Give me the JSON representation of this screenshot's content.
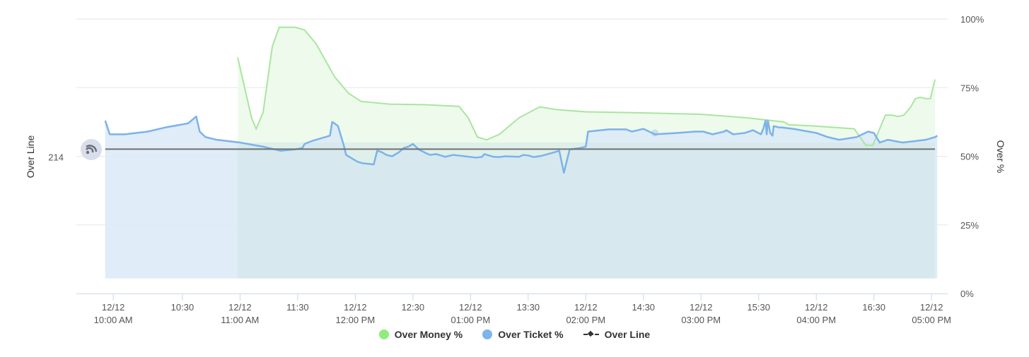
{
  "colors": {
    "money_line": "#a8e6a0",
    "money_fill": "#eefaeb",
    "ticket_line": "#7cb2ea",
    "ticket_fill": "#dbe9f7",
    "overlap_fill": "#d2e8e8",
    "overline": "#707070",
    "grid": "#e6e6e6",
    "legend_money": "#90ed7d",
    "legend_ticket": "#7cb5ec"
  },
  "chart_data": {
    "type": "area",
    "title": "",
    "ylabel_left": "Over Line",
    "ylabel_right": "Over %",
    "yticks_left": [
      "214"
    ],
    "yticks_right": [
      "100%",
      "75%",
      "50%",
      "25%",
      "0%"
    ],
    "ylim_right": [
      0,
      100
    ],
    "x_ticks": [
      {
        "t": 9.9,
        "line1": "12/12",
        "line2": "10:00 AM"
      },
      {
        "t": 10.5,
        "line1": "10:30",
        "line2": ""
      },
      {
        "t": 11.0,
        "line1": "12/12",
        "line2": "11:00 AM"
      },
      {
        "t": 11.5,
        "line1": "11:30",
        "line2": ""
      },
      {
        "t": 12.0,
        "line1": "12/12",
        "line2": "12:00 PM"
      },
      {
        "t": 12.5,
        "line1": "12:30",
        "line2": ""
      },
      {
        "t": 13.0,
        "line1": "12/12",
        "line2": "01:00 PM"
      },
      {
        "t": 13.5,
        "line1": "13:30",
        "line2": ""
      },
      {
        "t": 14.0,
        "line1": "12/12",
        "line2": "02:00 PM"
      },
      {
        "t": 14.5,
        "line1": "14:30",
        "line2": ""
      },
      {
        "t": 15.0,
        "line1": "12/12",
        "line2": "03:00 PM"
      },
      {
        "t": 15.5,
        "line1": "15:30",
        "line2": ""
      },
      {
        "t": 16.0,
        "line1": "12/12",
        "line2": "04:00 PM"
      },
      {
        "t": 16.5,
        "line1": "16:30",
        "line2": ""
      },
      {
        "t": 17.0,
        "line1": "12/12",
        "line2": "05:00 PM"
      }
    ],
    "xlim": [
      9.58,
      17.14
    ],
    "series": [
      {
        "name": "Over Money %",
        "x": [
          10.98,
          11.1,
          11.14,
          11.2,
          11.28,
          11.34,
          11.48,
          11.56,
          11.66,
          11.82,
          11.94,
          12.05,
          12.3,
          12.6,
          12.9,
          12.98,
          13.06,
          13.14,
          13.25,
          13.42,
          13.6,
          13.75,
          14.0,
          14.5,
          15.0,
          15.4,
          15.72,
          15.76,
          16.0,
          16.33,
          16.38,
          16.43,
          16.49,
          16.6,
          16.66,
          16.71,
          16.76,
          16.82,
          16.86,
          16.9,
          16.95,
          16.99,
          17.03
        ],
        "y": [
          86,
          64,
          60,
          66,
          90,
          97,
          97,
          96,
          91,
          79,
          73,
          70,
          69,
          68.8,
          68.2,
          64,
          57,
          56,
          58,
          64,
          68,
          67,
          66.2,
          65.8,
          65.3,
          64,
          62.5,
          61.5,
          61,
          60,
          57,
          54,
          54,
          65,
          65,
          64.5,
          65,
          68,
          71,
          71.5,
          71,
          71,
          78
        ]
      },
      {
        "name": "Over Ticket %",
        "x": [
          9.83,
          9.87,
          10.0,
          10.2,
          10.35,
          10.55,
          10.62,
          10.65,
          10.7,
          10.8,
          11.0,
          11.2,
          11.35,
          11.48,
          11.54,
          11.56,
          11.62,
          11.7,
          11.78,
          11.8,
          11.82,
          11.85,
          11.9,
          11.92,
          12.02,
          12.06,
          12.16,
          12.19,
          12.23,
          12.27,
          12.32,
          12.38,
          12.42,
          12.46,
          12.5,
          12.55,
          12.62,
          12.65,
          12.7,
          12.75,
          12.78,
          12.85,
          12.95,
          13.05,
          13.1,
          13.12,
          13.2,
          13.25,
          13.3,
          13.42,
          13.46,
          13.5,
          13.55,
          13.62,
          13.73,
          13.77,
          13.81,
          13.86,
          13.95,
          14.0,
          14.02,
          14.2,
          14.35,
          14.4,
          14.45,
          14.5,
          14.6,
          14.8,
          14.95,
          15.02,
          15.1,
          15.2,
          15.22,
          15.28,
          15.38,
          15.45,
          15.52,
          15.54,
          15.56,
          15.57,
          15.58,
          15.6,
          15.62,
          15.63,
          15.68,
          15.7,
          15.8,
          16.0,
          16.1,
          16.2,
          16.35,
          16.45,
          16.5,
          16.55,
          16.62,
          16.75,
          16.85,
          16.95,
          17.03,
          17.05
        ],
        "y": [
          63,
          58,
          58,
          59,
          60.5,
          62,
          64.5,
          59,
          57,
          56,
          55,
          53.5,
          52,
          52.5,
          53,
          54.5,
          55.5,
          56.5,
          57.5,
          62.5,
          62,
          61,
          54,
          50.5,
          48,
          47.5,
          47,
          52,
          51.5,
          50.5,
          50,
          51.5,
          53,
          53.5,
          54.5,
          52.5,
          51,
          50.5,
          50.8,
          50.2,
          49.8,
          50.5,
          50,
          49.5,
          49.8,
          50.8,
          49.8,
          49.7,
          50,
          49.8,
          50.5,
          50.3,
          49.7,
          50.2,
          51.5,
          52,
          44,
          52.5,
          53,
          53.5,
          59,
          59.8,
          59.8,
          59,
          59.5,
          60,
          58,
          58.5,
          59,
          59,
          58,
          59,
          59.5,
          58,
          58.5,
          59.5,
          58,
          60,
          63,
          58,
          63,
          58.5,
          57.5,
          61,
          60.5,
          60.5,
          60,
          58.5,
          57,
          56,
          57,
          59,
          58.5,
          55,
          56,
          55,
          55.5,
          56,
          57,
          57.5
        ]
      },
      {
        "name": "Over Line",
        "x": [
          9.83,
          17.03
        ],
        "y": [
          52.6,
          52.6
        ]
      }
    ],
    "legend": {
      "placement": "bottom-center"
    },
    "grid": true
  },
  "legend_labels": {
    "money": "Over Money %",
    "ticket": "Over Ticket %",
    "overline": "Over Line"
  }
}
